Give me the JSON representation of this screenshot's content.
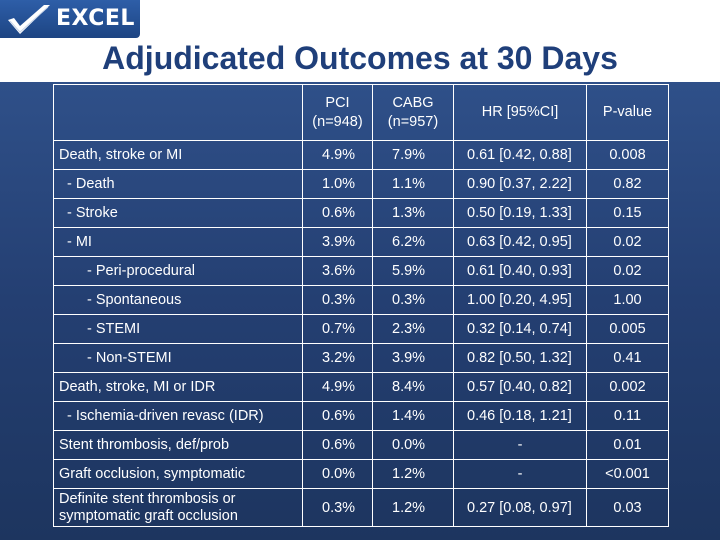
{
  "logo": {
    "text": "EXCEL"
  },
  "title": "Adjudicated Outcomes at 30 Days",
  "table": {
    "headers": [
      "",
      "PCI\n(n=948)",
      "CABG\n(n=957)",
      "HR [95%CI]",
      "P-value"
    ],
    "header_lines": {
      "pci": [
        "PCI",
        "(n=948)"
      ],
      "cabg": [
        "CABG",
        "(n=957)"
      ],
      "hr": "HR [95%CI]",
      "p": "P-value"
    },
    "rows": [
      {
        "label": "Death, stroke or MI",
        "pci": "4.9%",
        "cabg": "7.9%",
        "hr": "0.61 [0.42, 0.88]",
        "p": "0.008"
      },
      {
        "label": "- Death",
        "pci": "1.0%",
        "cabg": "1.1%",
        "hr": "0.90 [0.37, 2.22]",
        "p": "0.82"
      },
      {
        "label": "- Stroke",
        "pci": "0.6%",
        "cabg": "1.3%",
        "hr": "0.50 [0.19, 1.33]",
        "p": "0.15"
      },
      {
        "label": "- MI",
        "pci": "3.9%",
        "cabg": "6.2%",
        "hr": "0.63 [0.42, 0.95]",
        "p": "0.02"
      },
      {
        "label": "- Peri-procedural",
        "pci": "3.6%",
        "cabg": "5.9%",
        "hr": "0.61 [0.40, 0.93]",
        "p": "0.02"
      },
      {
        "label": "- Spontaneous",
        "pci": "0.3%",
        "cabg": "0.3%",
        "hr": "1.00 [0.20, 4.95]",
        "p": "1.00"
      },
      {
        "label": "- STEMI",
        "pci": "0.7%",
        "cabg": "2.3%",
        "hr": "0.32 [0.14, 0.74]",
        "p": "0.005"
      },
      {
        "label": "- Non-STEMI",
        "pci": "3.2%",
        "cabg": "3.9%",
        "hr": "0.82 [0.50, 1.32]",
        "p": "0.41"
      },
      {
        "label": "Death, stroke, MI or IDR",
        "pci": "4.9%",
        "cabg": "8.4%",
        "hr": "0.57 [0.40, 0.82]",
        "p": "0.002"
      },
      {
        "label": "- Ischemia-driven revasc (IDR)",
        "pci": "0.6%",
        "cabg": "1.4%",
        "hr": "0.46 [0.18, 1.21]",
        "p": "0.11"
      },
      {
        "label": "Stent thrombosis, def/prob",
        "pci": "0.6%",
        "cabg": "0.0%",
        "hr": "-",
        "p": "0.01"
      },
      {
        "label": "Graft occlusion, symptomatic",
        "pci": "0.0%",
        "cabg": "1.2%",
        "hr": "-",
        "p": "<0.001"
      },
      {
        "label": "Definite stent thrombosis or symptomatic graft occlusion",
        "pci": "0.3%",
        "cabg": "1.2%",
        "hr": "0.27 [0.08, 0.97]",
        "p": "0.03"
      }
    ]
  },
  "colors": {
    "background": "#2a4a82",
    "title": "#1f3f7a",
    "logo_bg": "#2e5ea8",
    "table_text": "#ffffff",
    "grid": "#ffffff"
  }
}
